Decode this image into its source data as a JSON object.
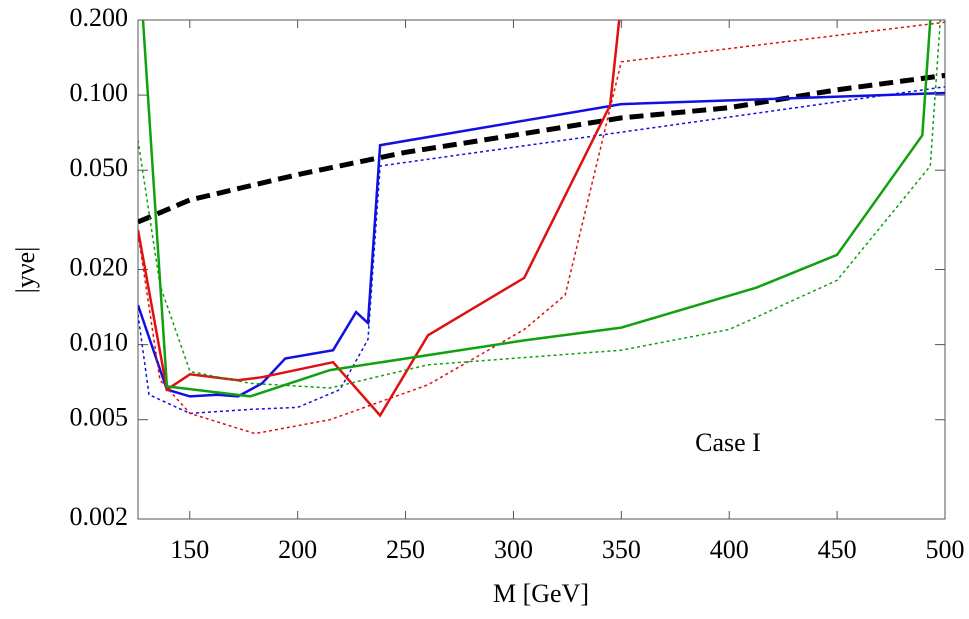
{
  "chart_data": {
    "type": "line",
    "x_label": "M [GeV]",
    "y_label": "|yνe|",
    "annotation": "Case I",
    "xlim": [
      126,
      500
    ],
    "xticks": [
      150,
      200,
      250,
      300,
      350,
      400,
      450,
      500
    ],
    "ylim": [
      0.002,
      0.2
    ],
    "log_y": true,
    "yticks": [
      0.002,
      0.005,
      {
        "value": 0.01,
        "label": "0.010"
      },
      {
        "value": 0.02,
        "label": "0.020"
      },
      {
        "value": 0.05,
        "label": "0.050"
      },
      {
        "value": 0.1,
        "label": "0.100"
      },
      {
        "value": 0.2,
        "label": "0.200"
      }
    ],
    "series": [
      {
        "color": "#000000",
        "style": "dashed",
        "width": 5,
        "x": [
          126,
          150,
          200,
          250,
          300,
          350,
          400,
          450,
          500
        ],
        "values": [
          0.031,
          0.038,
          0.048,
          0.059,
          0.069,
          0.081,
          0.089,
          0.105,
          0.12
        ]
      },
      {
        "color": "#1010e0",
        "style": "solid",
        "width": 2.5,
        "x": [
          126,
          139.4,
          150.1,
          162.6,
          172.4,
          183.5,
          194.2,
          216.4,
          227.1,
          232.6,
          238.2,
          350,
          500
        ],
        "values": [
          0.0144,
          0.0066,
          0.0062,
          0.0063,
          0.0062,
          0.007,
          0.0088,
          0.0095,
          0.0135,
          0.0122,
          0.063,
          0.092,
          0.102
        ]
      },
      {
        "color": "#1010e0",
        "style": "dotted",
        "width": 1.5,
        "x": [
          126,
          131.1,
          150.1,
          178,
          200,
          219.6,
          232.6,
          238.2,
          500
        ],
        "values": [
          0.0132,
          0.0063,
          0.0053,
          0.0055,
          0.0056,
          0.0066,
          0.0105,
          0.052,
          0.108
        ]
      },
      {
        "color": "#e01010",
        "style": "solid",
        "width": 2.5,
        "x": [
          126,
          139.4,
          150.1,
          172.4,
          183.5,
          216.4,
          238.2,
          260.4,
          305,
          344.8,
          349
        ],
        "values": [
          0.0288,
          0.0066,
          0.0076,
          0.0072,
          0.0074,
          0.0085,
          0.0052,
          0.0109,
          0.0185,
          0.091,
          0.2
        ]
      },
      {
        "color": "#e01010",
        "style": "dotted",
        "width": 1.5,
        "x": [
          126,
          136.2,
          150.1,
          180.2,
          215,
          260.4,
          305,
          324,
          350,
          500
        ],
        "values": [
          0.028,
          0.0072,
          0.0053,
          0.0044,
          0.005,
          0.0069,
          0.0115,
          0.0158,
          0.136,
          0.196
        ]
      },
      {
        "color": "#10a010",
        "style": "solid",
        "width": 2.5,
        "x": [
          128.3,
          139.4,
          178,
          215,
          305,
          350,
          412.5,
          450,
          489.5,
          493.2
        ],
        "values": [
          0.2,
          0.0068,
          0.0062,
          0.0079,
          0.0104,
          0.0117,
          0.0169,
          0.0229,
          0.069,
          0.2
        ]
      },
      {
        "color": "#10a010",
        "style": "dotted",
        "width": 1.5,
        "x": [
          126,
          136.2,
          150.1,
          178,
          215,
          260.4,
          350,
          400,
          450,
          493.2,
          497.8
        ],
        "values": [
          0.066,
          0.0173,
          0.0078,
          0.007,
          0.0067,
          0.0083,
          0.0095,
          0.0115,
          0.0181,
          0.052,
          0.2
        ]
      }
    ]
  }
}
